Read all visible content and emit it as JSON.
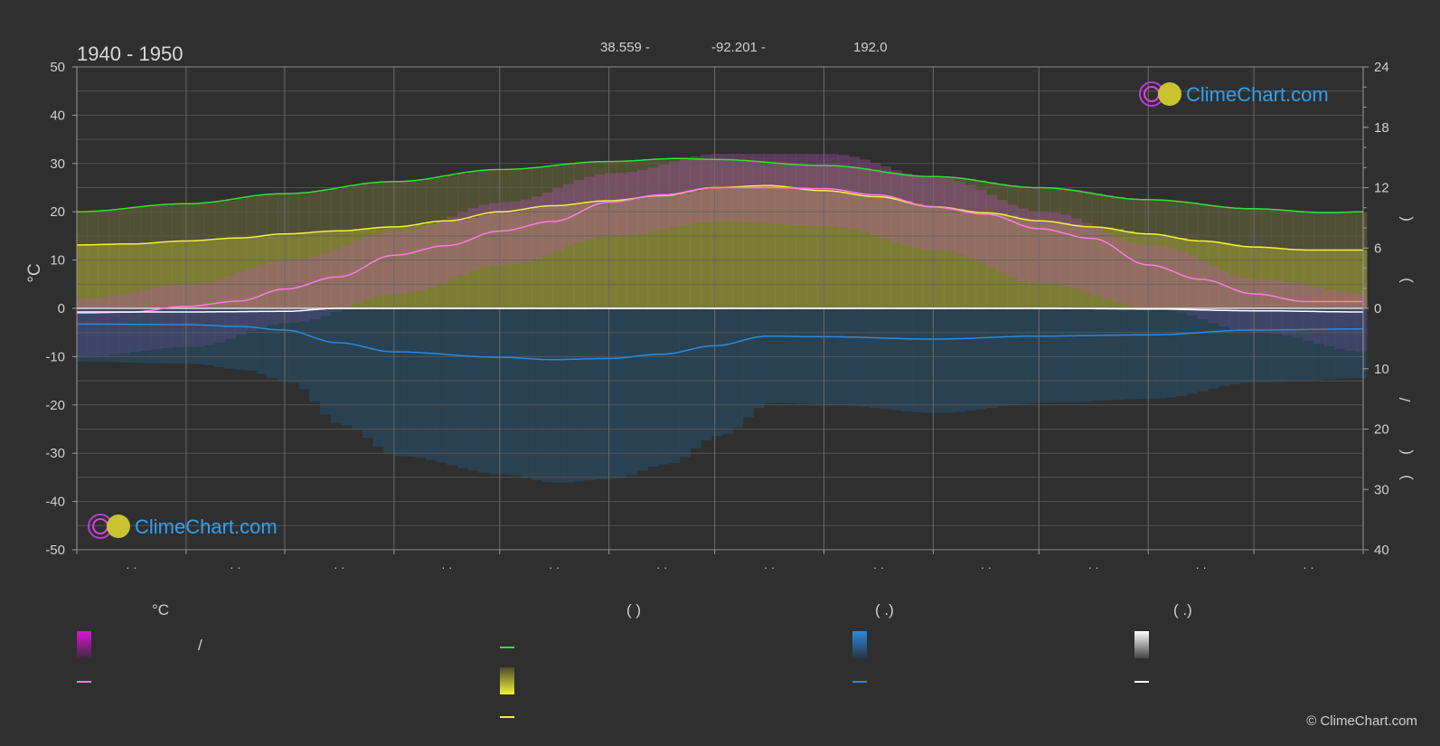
{
  "header": {
    "period": "1940 - 1950",
    "latitude": "38.559 -",
    "longitude": "-92.201 -",
    "elevation": "192.0"
  },
  "watermark": {
    "brand": "ClimeChart.com",
    "copyright": "© ClimeChart.com"
  },
  "axes": {
    "left_unit": "°C",
    "left_ticks": [
      "50",
      "40",
      "30",
      "20",
      "10",
      "0",
      "-10",
      "-20",
      "-30",
      "-40",
      "-50"
    ],
    "right_upper_ticks": [
      "24",
      "18",
      "12",
      "6",
      "0"
    ],
    "right_lower_ticks": [
      "10",
      "20",
      "30",
      "40"
    ],
    "right_axis_glyphs": [
      "(",
      ")",
      "/",
      "(",
      ")",
      "(",
      "·",
      ")"
    ],
    "month_tick_marks": [
      "· ·",
      "· ·",
      "· ·",
      "· ·",
      "· ·",
      "· ·",
      "· ·",
      "· ·",
      "· ·",
      "· ·",
      "· ·",
      "· ·"
    ]
  },
  "legend": {
    "col1_header": "°C",
    "col2_header": "(            )",
    "col3_header": "(    .)",
    "col4_header": "(    .)",
    "col1_row1_text": "/"
  },
  "colors": {
    "background": "#2f2f2f",
    "grid": "#5c5c5c",
    "daylight": "#33e233",
    "sunshine": "#f2f23a",
    "temp_mean": "#ff79e6",
    "temp_range": "#e010e0",
    "rain": "#2a8ae0",
    "snow": "#ffffff",
    "brand": "#2ea1f0"
  },
  "chart_data": {
    "type": "line",
    "x_unit": "day of year",
    "xlim": [
      0,
      365
    ],
    "ylim_left": [
      -50,
      50
    ],
    "right_upper_ylim": [
      0,
      24
    ],
    "right_lower_ylim": [
      0,
      40
    ],
    "grid": true,
    "series": [
      {
        "key": "daylight_hours",
        "axis": "right_upper",
        "x": [
          0,
          31,
          59,
          90,
          120,
          151,
          171,
          181,
          212,
          243,
          273,
          304,
          334,
          355,
          365
        ],
        "y": [
          9.6,
          10.4,
          11.4,
          12.6,
          13.8,
          14.6,
          14.9,
          14.8,
          14.2,
          13.1,
          12.0,
          10.8,
          9.9,
          9.5,
          9.6
        ]
      },
      {
        "key": "sunshine_hours",
        "axis": "right_upper",
        "x": [
          0,
          15,
          31,
          46,
          59,
          74,
          90,
          105,
          120,
          135,
          151,
          166,
          181,
          196,
          212,
          227,
          243,
          258,
          273,
          288,
          304,
          319,
          334,
          349,
          365
        ],
        "y": [
          6.3,
          6.4,
          6.7,
          7.0,
          7.4,
          7.7,
          8.1,
          8.7,
          9.6,
          10.2,
          10.7,
          11.2,
          12.0,
          12.2,
          11.7,
          11.1,
          10.1,
          9.5,
          8.7,
          8.1,
          7.4,
          6.7,
          6.1,
          5.8,
          5.8
        ]
      },
      {
        "key": "temp_mean",
        "axis": "left",
        "x": [
          0,
          15,
          31,
          46,
          59,
          74,
          90,
          105,
          120,
          135,
          151,
          166,
          181,
          196,
          212,
          227,
          243,
          258,
          273,
          288,
          304,
          319,
          334,
          349,
          365
        ],
        "y": [
          -1.0,
          -0.8,
          0.4,
          1.5,
          4.0,
          6.5,
          11.0,
          13.0,
          16.0,
          18.0,
          22.0,
          23.5,
          25.0,
          25.0,
          24.8,
          23.5,
          21.0,
          19.5,
          16.5,
          14.5,
          9.0,
          6.0,
          3.0,
          1.4,
          1.4
        ]
      },
      {
        "key": "rain_mm",
        "axis": "right_lower",
        "x": [
          0,
          31,
          46,
          59,
          74,
          90,
          120,
          135,
          151,
          166,
          181,
          196,
          212,
          243,
          273,
          304,
          334,
          365
        ],
        "y": [
          2.6,
          2.7,
          3.0,
          3.6,
          5.7,
          7.2,
          8.1,
          8.5,
          8.3,
          7.6,
          6.2,
          4.6,
          4.7,
          5.1,
          4.6,
          4.4,
          3.6,
          3.4
        ]
      },
      {
        "key": "snow_mm",
        "axis": "right_lower",
        "x": [
          0,
          31,
          59,
          74,
          90,
          273,
          304,
          334,
          365
        ],
        "y": [
          0.6,
          0.6,
          0.5,
          0.0,
          0.0,
          0.0,
          0.1,
          0.4,
          0.6
        ]
      },
      {
        "key": "temp_max_band",
        "axis": "left",
        "x": [
          0,
          31,
          59,
          90,
          120,
          151,
          181,
          212,
          243,
          273,
          304,
          334,
          365
        ],
        "y": [
          2,
          5,
          10,
          16,
          22,
          28,
          32,
          32,
          27,
          20,
          13,
          6,
          3
        ]
      },
      {
        "key": "temp_min_band",
        "axis": "left",
        "x": [
          0,
          31,
          59,
          90,
          120,
          151,
          181,
          212,
          243,
          273,
          304,
          334,
          365
        ],
        "y": [
          -10,
          -8,
          -3,
          3,
          9,
          15,
          18,
          17,
          12,
          5,
          0,
          -5,
          -9
        ]
      }
    ]
  }
}
